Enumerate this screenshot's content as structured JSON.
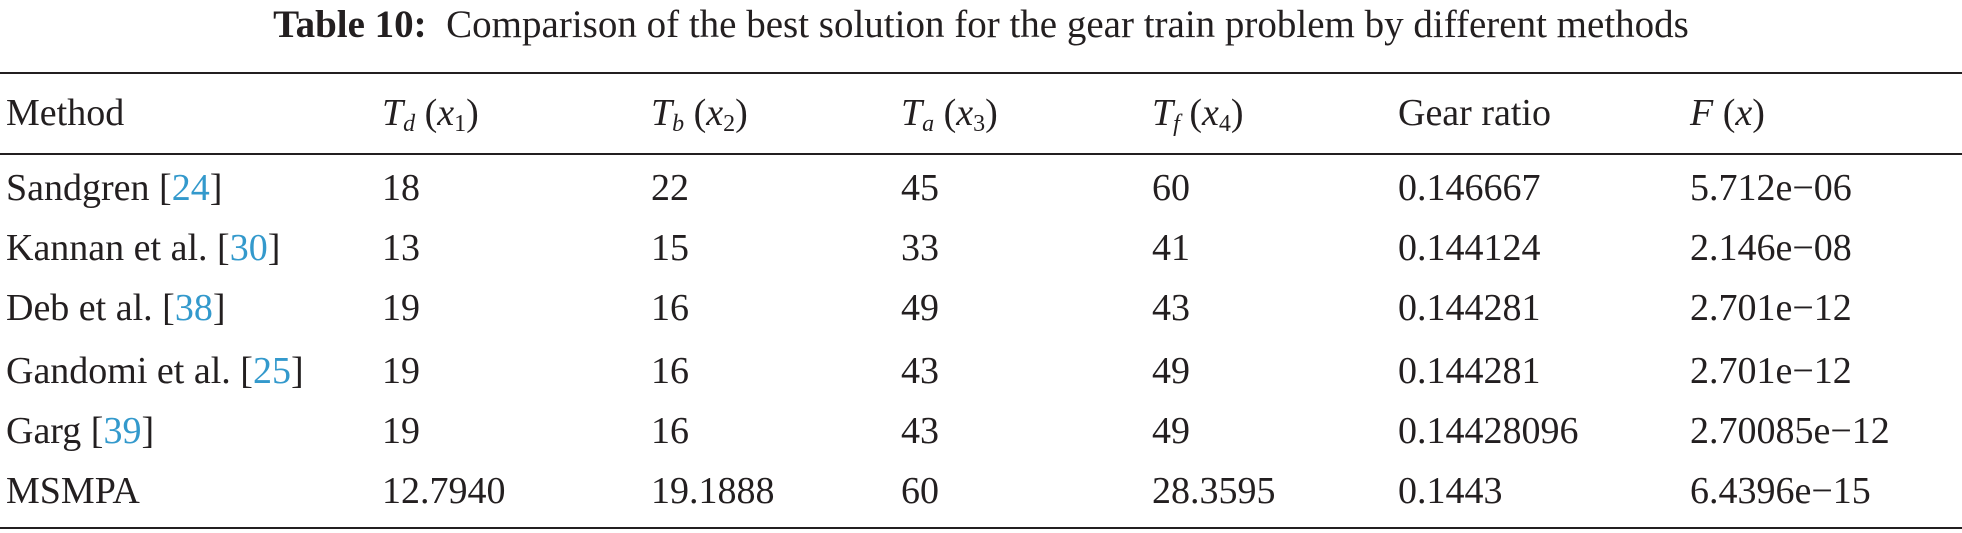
{
  "caption": {
    "label": "Table 10:",
    "text": "Comparison of the best solution for the gear train problem by different methods"
  },
  "table": {
    "header": {
      "method": "Method",
      "td": [
        "T",
        "d",
        "(",
        "x",
        "1",
        ")"
      ],
      "tb": [
        "T",
        "b",
        "(",
        "x",
        "2",
        ")"
      ],
      "ta": [
        "T",
        "a",
        "(",
        "x",
        "3",
        ")"
      ],
      "tf": [
        "T",
        "f",
        "(",
        "x",
        "4",
        ")"
      ],
      "ratio": "Gear ratio",
      "f": [
        "F",
        "(",
        "x",
        ")"
      ]
    },
    "rows": [
      [
        [
          "Sandgren [",
          "24",
          "]"
        ],
        "18",
        "22",
        "45",
        "60",
        "0.146667",
        "5.712e−06"
      ],
      [
        [
          "Kannan et al. [",
          "30",
          "]"
        ],
        "13",
        "15",
        "33",
        "41",
        "0.144124",
        "2.146e−08"
      ],
      [
        [
          "Deb et al. [",
          "38",
          "]"
        ],
        "19",
        "16",
        "49",
        "43",
        "0.144281",
        "2.701e−12"
      ],
      [
        [
          "Gandomi et al. [",
          "25",
          "]"
        ],
        "19",
        "16",
        "43",
        "49",
        "0.144281",
        "2.701e−12"
      ],
      [
        [
          "Garg [",
          "39",
          "]"
        ],
        "19",
        "16",
        "43",
        "49",
        "0.14428096",
        "2.70085e−12"
      ],
      [
        [
          "MSMPA"
        ],
        "12.7940",
        "19.1888",
        "60",
        "28.3595",
        "0.1443",
        "6.4396e−15"
      ]
    ]
  }
}
